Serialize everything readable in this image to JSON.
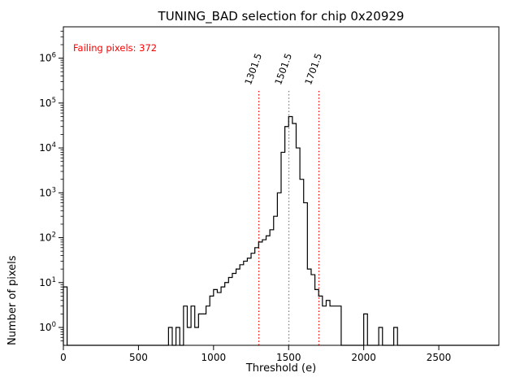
{
  "figure": {
    "title": "TUNING_BAD selection for chip 0x20929",
    "xlabel": "Threshold (e)",
    "ylabel": "Number of pixels",
    "annotation": {
      "text": "Failing pixels: 372",
      "color": "#ff0000"
    }
  },
  "chart_data": {
    "type": "histogram-step",
    "title": "TUNING_BAD selection for chip 0x20929",
    "xlabel": "Threshold (e)",
    "ylabel": "Number of pixels",
    "annotations": [
      "Failing pixels: 372"
    ],
    "line_color": "#000000",
    "bin_width": 25,
    "bins": [
      [
        0,
        8
      ],
      [
        700,
        1
      ],
      [
        750,
        1
      ],
      [
        800,
        3
      ],
      [
        825,
        1
      ],
      [
        850,
        3
      ],
      [
        875,
        1
      ],
      [
        900,
        2
      ],
      [
        925,
        2
      ],
      [
        950,
        3
      ],
      [
        975,
        5
      ],
      [
        1000,
        7
      ],
      [
        1025,
        6
      ],
      [
        1050,
        8
      ],
      [
        1075,
        10
      ],
      [
        1100,
        13
      ],
      [
        1125,
        16
      ],
      [
        1150,
        20
      ],
      [
        1175,
        25
      ],
      [
        1200,
        30
      ],
      [
        1225,
        35
      ],
      [
        1250,
        45
      ],
      [
        1275,
        60
      ],
      [
        1300,
        80
      ],
      [
        1325,
        90
      ],
      [
        1350,
        110
      ],
      [
        1375,
        150
      ],
      [
        1400,
        300
      ],
      [
        1425,
        1000
      ],
      [
        1450,
        8000
      ],
      [
        1475,
        30000
      ],
      [
        1500,
        50000
      ],
      [
        1525,
        35000
      ],
      [
        1550,
        10000
      ],
      [
        1575,
        2000
      ],
      [
        1600,
        600
      ],
      [
        1625,
        20
      ],
      [
        1650,
        15
      ],
      [
        1675,
        7
      ],
      [
        1700,
        5
      ],
      [
        1725,
        3
      ],
      [
        1750,
        4
      ],
      [
        1775,
        3
      ],
      [
        1800,
        3
      ],
      [
        1825,
        3
      ],
      [
        2000,
        2
      ],
      [
        2100,
        1
      ],
      [
        2200,
        1
      ]
    ],
    "xlim": [
      0,
      2900
    ],
    "ylim_log": [
      0.4,
      5000000
    ],
    "x_ticks": [
      0,
      500,
      1000,
      1500,
      2000,
      2500
    ],
    "y_tick_exponents": [
      0,
      1,
      2,
      3,
      4,
      5,
      6
    ],
    "vline_top": 200000,
    "vlines": [
      {
        "x": 1301.5,
        "label": "1301.5",
        "color": "#ff0000",
        "style": "dotted"
      },
      {
        "x": 1501.5,
        "label": "1501.5",
        "color": "#808080",
        "style": "dotted"
      },
      {
        "x": 1701.5,
        "label": "1701.5",
        "color": "#ff0000",
        "style": "dotted"
      }
    ],
    "legend": null,
    "grid": false
  }
}
